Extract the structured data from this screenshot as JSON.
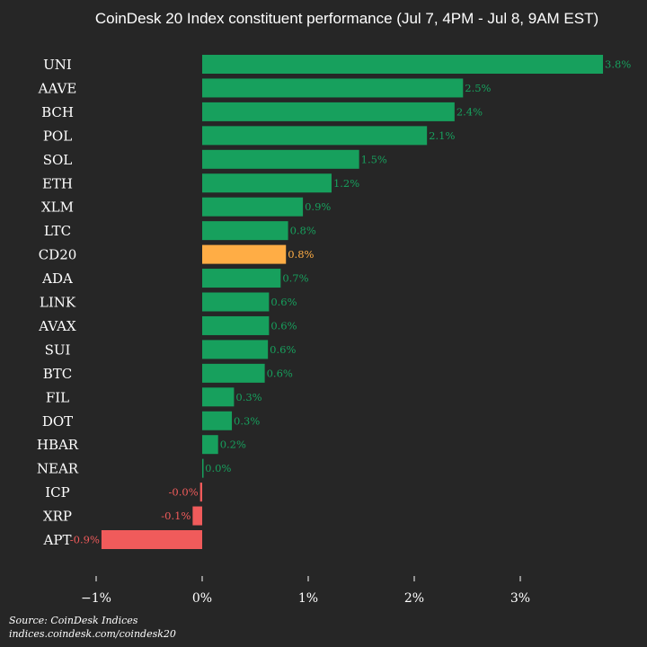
{
  "chart_data": {
    "type": "bar",
    "orientation": "horizontal",
    "title": "CoinDesk 20 Index constituent performance (Jul 7, 4PM - Jul 8, 9AM EST)",
    "categories": [
      "UNI",
      "AAVE",
      "BCH",
      "POL",
      "SOL",
      "ETH",
      "XLM",
      "LTC",
      "CD20",
      "ADA",
      "LINK",
      "AVAX",
      "SUI",
      "BTC",
      "FIL",
      "DOT",
      "HBAR",
      "NEAR",
      "ICP",
      "XRP",
      "APT"
    ],
    "values": [
      3.78,
      2.46,
      2.38,
      2.12,
      1.48,
      1.22,
      0.95,
      0.81,
      0.79,
      0.74,
      0.63,
      0.63,
      0.62,
      0.59,
      0.3,
      0.28,
      0.15,
      0.01,
      -0.02,
      -0.09,
      -0.95
    ],
    "value_labels": [
      "3.8%",
      "2.5%",
      "2.4%",
      "2.1%",
      "1.5%",
      "1.2%",
      "0.9%",
      "0.8%",
      "0.8%",
      "0.7%",
      "0.6%",
      "0.6%",
      "0.6%",
      "0.6%",
      "0.3%",
      "0.3%",
      "0.2%",
      "0.0%",
      "-0.0%",
      "-0.1%",
      "-0.9%"
    ],
    "highlight_category": "CD20",
    "xlim": [
      -1.3,
      4.1
    ],
    "xticks": [
      -1,
      0,
      1,
      2,
      3
    ],
    "xtick_labels": [
      "−1%",
      "0%",
      "1%",
      "2%",
      "3%"
    ],
    "xlabel": "",
    "ylabel": "",
    "grid": false,
    "legend": "none"
  },
  "colors": {
    "background": "#262626",
    "positive": "#17a05d",
    "negative": "#f05b5b",
    "highlight": "#ffad45",
    "text": "#ffffff"
  },
  "source": {
    "line1": "Source: CoinDesk Indices",
    "line2": "indices.coindesk.com/coindesk20"
  }
}
